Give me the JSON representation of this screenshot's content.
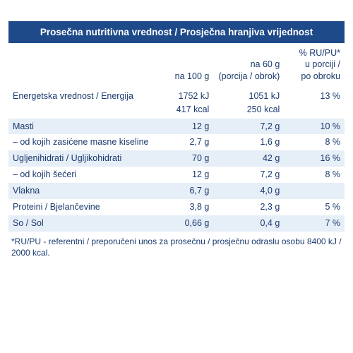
{
  "header": "Prosečna nutritivna vrednost / Prosječna hranjiva vrijednost",
  "colHeaders": {
    "c1": "",
    "c2": "na 100 g",
    "c3": "na 60 g\n(porcija / obrok)",
    "c4": "% RU/PU*\nu porciji /\npo obroku"
  },
  "rows": [
    {
      "label": "Energetska vrednost / Energija",
      "a": "1752 kJ",
      "b": "1051 kJ",
      "c": "13 %",
      "shade": false,
      "cls": "energy"
    },
    {
      "label": "",
      "a": "417 kcal",
      "b": "250 kcal",
      "c": "",
      "shade": false,
      "cls": "energy2"
    },
    {
      "label": "Masti",
      "a": "12 g",
      "b": "7,2 g",
      "c": "10 %",
      "shade": true
    },
    {
      "label": "– od kojih zasićene masne kiseline",
      "a": "2,7 g",
      "b": "1,6 g",
      "c": "8 %",
      "shade": false
    },
    {
      "label": "Ugljenihidrati / Ugljikohidrati",
      "a": "70 g",
      "b": "42 g",
      "c": "16 %",
      "shade": true
    },
    {
      "label": "– od kojih šećeri",
      "a": "12 g",
      "b": "7,2 g",
      "c": "8 %",
      "shade": false
    },
    {
      "label": "Vlakna",
      "a": "6,7 g",
      "b": "4,0 g",
      "c": "",
      "shade": true
    },
    {
      "label": "Proteini / Bjelančevine",
      "a": "3,8 g",
      "b": "2,3 g",
      "c": "5 %",
      "shade": false
    },
    {
      "label": "So / Sol",
      "a": "0,66 g",
      "b": "0,4 g",
      "c": "7 %",
      "shade": true
    }
  ],
  "footnote": "*RU/PU - referentni / preporučeni unos za prosečnu / prosječnu odraslu osobu 8400 kJ / 2000 kcal."
}
